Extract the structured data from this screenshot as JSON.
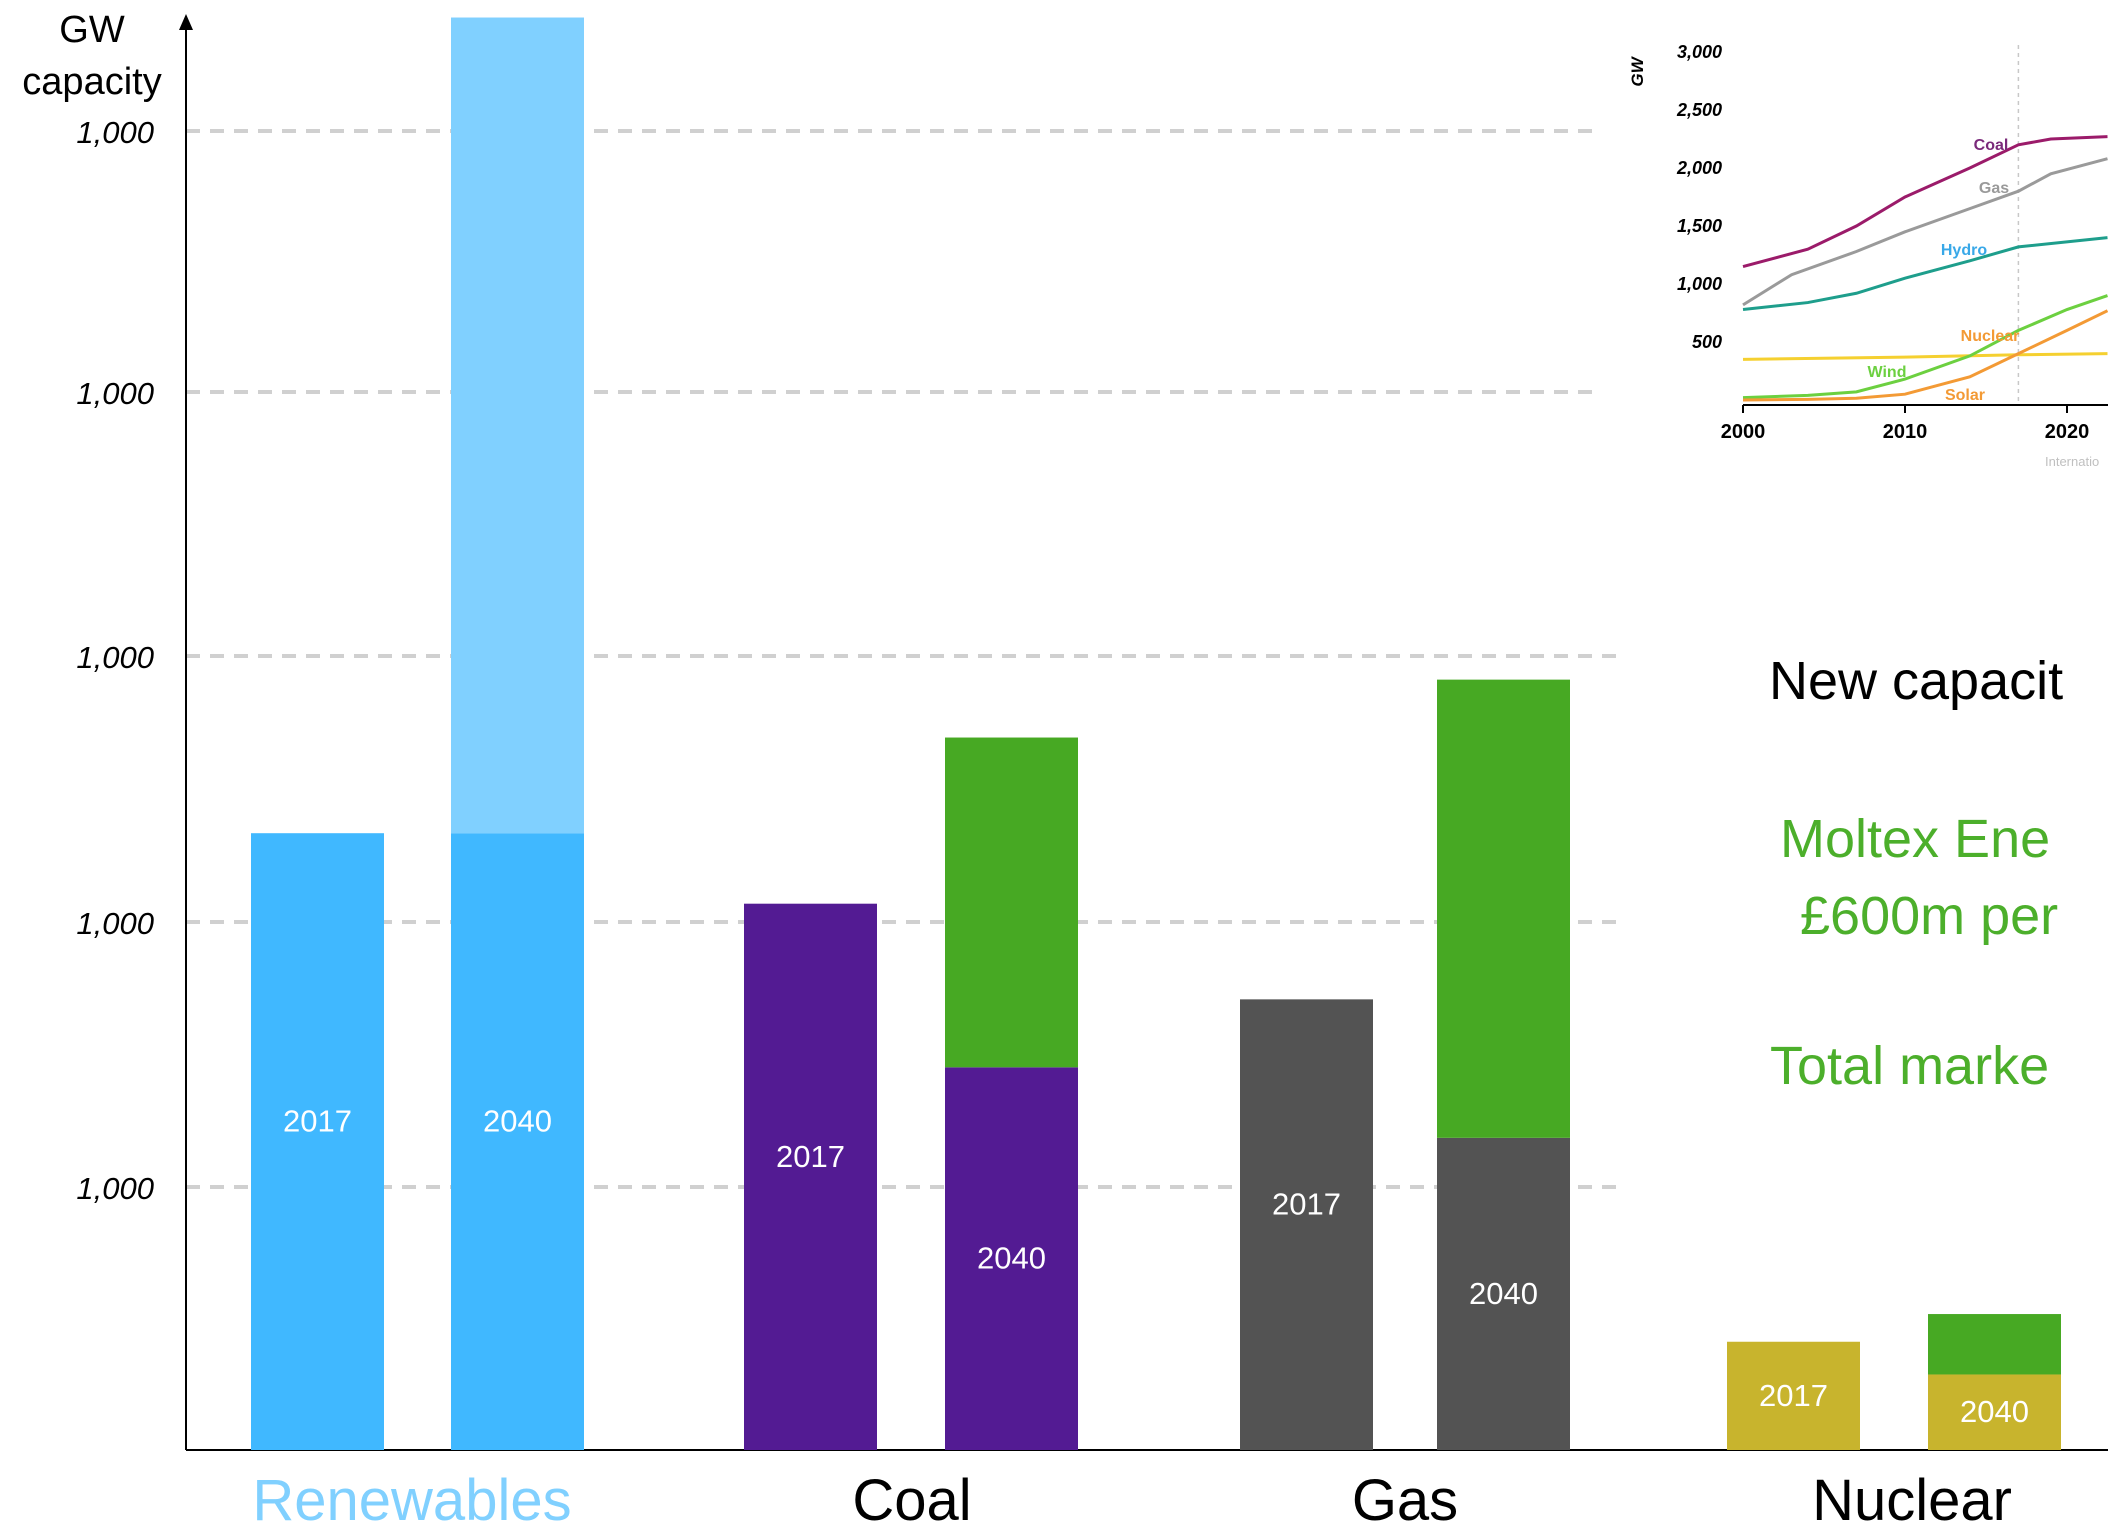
{
  "chart_data": [
    {
      "type": "bar",
      "ylabel": "GW\ncapacity",
      "y_tick_labels": [
        "1,000",
        "1,000",
        "1,000",
        "1,000",
        "1,000"
      ],
      "grid": "dashed horizontal",
      "groups": [
        {
          "category": "Renewables",
          "label_color": "#80d0ff",
          "bars": [
            {
              "label": "2017",
              "base": 1225,
              "addition": 0,
              "base_color": "#40b8ff"
            },
            {
              "label": "2040",
              "base": 1225,
              "addition": 1620,
              "base_color": "#40b8ff",
              "addition_color": "#80d0ff"
            }
          ]
        },
        {
          "category": "Coal",
          "label_color": "#000000",
          "bars": [
            {
              "label": "2017",
              "base": 1085,
              "addition": 0,
              "base_color": "#531b93"
            },
            {
              "label": "2040",
              "base": 760,
              "addition": 655,
              "base_color": "#531b93",
              "addition_color": "#47a923"
            }
          ]
        },
        {
          "category": "Gas",
          "label_color": "#000000",
          "bars": [
            {
              "label": "2017",
              "base": 895,
              "addition": 0,
              "base_color": "#535353"
            },
            {
              "label": "2040",
              "base": 620,
              "addition": 910,
              "base_color": "#535353",
              "addition_color": "#47a923"
            }
          ]
        },
        {
          "category": "Nuclear",
          "label_color": "#000000",
          "bars": [
            {
              "label": "2017",
              "base": 215,
              "addition": 0,
              "base_color": "#c8b42d"
            },
            {
              "label": "2040",
              "base": 150,
              "addition": 120,
              "base_color": "#c8b42d",
              "addition_color": "#47a923"
            }
          ]
        }
      ],
      "ylim": [
        0,
        2850
      ]
    },
    {
      "type": "line",
      "ylabel": "GW",
      "y_ticks": [
        "3,000",
        "2,500",
        "2,000",
        "1,500",
        "1,000",
        "500"
      ],
      "x_ticks": [
        "2000",
        "2010",
        "2020"
      ],
      "xlim": [
        2000,
        2022.5
      ],
      "ylim": [
        0,
        3000
      ],
      "divider_year": 2017,
      "source_text": "Internatio",
      "series": [
        {
          "name": "Coal",
          "color": "#9b1b6a",
          "x": [
            2000,
            2004,
            2007,
            2010,
            2014,
            2017,
            2019,
            2022.5
          ],
          "y": [
            1150,
            1300,
            1500,
            1750,
            2000,
            2200,
            2250,
            2270
          ]
        },
        {
          "name": "Gas",
          "color": "#9a9a9a",
          "x": [
            2000,
            2003,
            2007,
            2010,
            2014,
            2017,
            2019,
            2022.5
          ],
          "y": [
            820,
            1080,
            1280,
            1450,
            1650,
            1800,
            1950,
            2080
          ]
        },
        {
          "name": "Hydro",
          "color": "#1e9e8c",
          "x": [
            2000,
            2004,
            2007,
            2010,
            2014,
            2017,
            2022.5
          ],
          "y": [
            780,
            840,
            920,
            1050,
            1200,
            1320,
            1400
          ]
        },
        {
          "name": "Nuclear",
          "color": "#f5d030",
          "x": [
            2000,
            2010,
            2017,
            2022.5
          ],
          "y": [
            350,
            370,
            390,
            400
          ]
        },
        {
          "name": "Wind",
          "color": "#6cd040",
          "x": [
            2000,
            2004,
            2007,
            2010,
            2014,
            2017,
            2020,
            2022.5
          ],
          "y": [
            20,
            40,
            70,
            180,
            380,
            600,
            780,
            900
          ]
        },
        {
          "name": "Solar",
          "color": "#f39a35",
          "x": [
            2000,
            2004,
            2007,
            2010,
            2014,
            2017,
            2020,
            2022.5
          ],
          "y": [
            0,
            5,
            15,
            50,
            200,
            400,
            600,
            770
          ]
        }
      ]
    }
  ],
  "side_text": {
    "new_capacity": "New capacit",
    "moltex_line1": "Moltex Ene",
    "moltex_line2": "£600m per",
    "total_market": "Total marke"
  },
  "colors": {
    "green_text": "#4caf2b",
    "grid": "#d0d0d0"
  }
}
